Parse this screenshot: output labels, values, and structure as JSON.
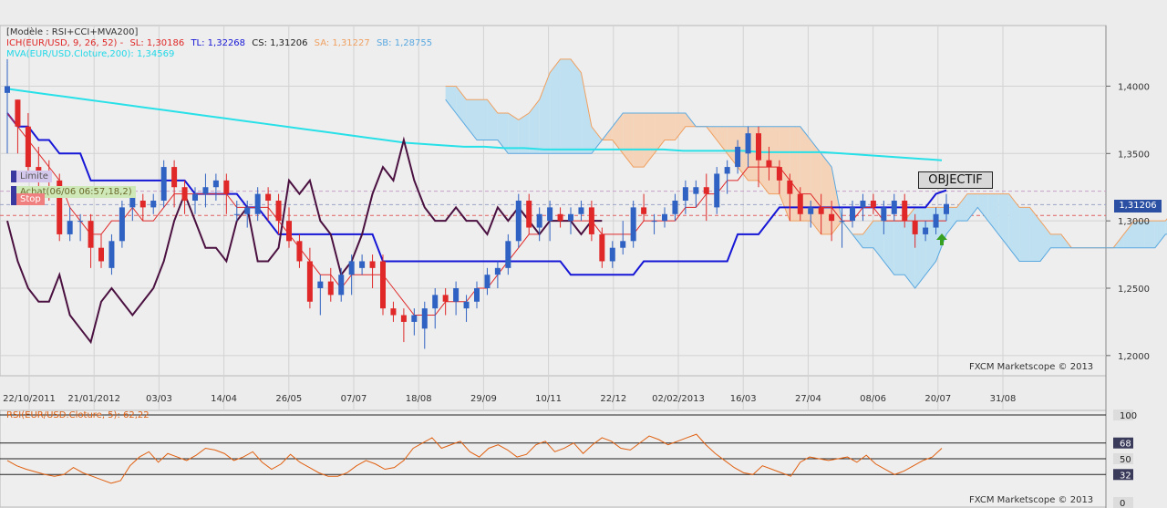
{
  "legend": {
    "model": "[Modèle : RSI+CCI+MVA200]",
    "ich_name": "ICH(EUR/USD, 9, 26, 52) -",
    "sl": "SL: 1,30186",
    "tl": "TL: 1,32268",
    "cs": "CS: 1,31206",
    "sa": "SA: 1,31227",
    "sb": "SB: 1,28755",
    "mva": "MVA(EUR/USD.Cloture,200): 1,34569"
  },
  "order_tags": {
    "limite": "Limite",
    "achat": "Achat(06/06 06:57,18,2)",
    "stop": "Stop"
  },
  "objectif": "OBJECTIF",
  "current_price": "1,31206",
  "watermark": "FXCM Marketscope © 2013",
  "colors": {
    "bull": "#2f62c2",
    "bear": "#e02828",
    "tenkan": "#e02828",
    "kijun": "#1616d6",
    "chikou": "#4a1040",
    "mva": "#28e0e8",
    "senkou_a": "#f0a060",
    "senkou_b": "#5aa8e0",
    "rsi": "#e06010",
    "arrow": "#38a020"
  },
  "chart_data": [
    {
      "type": "candlestick",
      "title": "ICH(EUR/USD, 9, 26, 52)",
      "y_ticks": [
        "1,4000",
        "1,3500",
        "1,3000",
        "1,2500",
        "1,2000"
      ],
      "x_ticks": [
        "22/10/2011",
        "21/01/2012",
        "03/03",
        "14/04",
        "26/05",
        "07/07",
        "18/08",
        "29/09",
        "10/11",
        "22/12",
        "02/02/2013",
        "16/03",
        "27/04",
        "08/06",
        "20/07",
        "31/08"
      ],
      "ylim": [
        1.185,
        1.445
      ],
      "candles": [
        [
          1.395,
          1.42,
          1.4,
          1.35
        ],
        [
          1.39,
          1.39,
          1.37,
          1.35
        ],
        [
          1.37,
          1.38,
          1.34,
          1.33
        ],
        [
          1.34,
          1.355,
          1.335,
          1.325
        ],
        [
          1.335,
          1.345,
          1.33,
          1.315
        ],
        [
          1.33,
          1.335,
          1.29,
          1.285
        ],
        [
          1.29,
          1.31,
          1.3,
          1.285
        ],
        [
          1.3,
          1.305,
          1.3,
          1.285
        ],
        [
          1.3,
          1.305,
          1.28,
          1.265
        ],
        [
          1.28,
          1.29,
          1.27,
          1.265
        ],
        [
          1.265,
          1.29,
          1.285,
          1.26
        ],
        [
          1.285,
          1.315,
          1.31,
          1.28
        ],
        [
          1.31,
          1.325,
          1.32,
          1.3
        ],
        [
          1.315,
          1.32,
          1.31,
          1.3
        ],
        [
          1.31,
          1.32,
          1.315,
          1.305
        ],
        [
          1.315,
          1.345,
          1.34,
          1.31
        ],
        [
          1.34,
          1.345,
          1.325,
          1.31
        ],
        [
          1.325,
          1.33,
          1.315,
          1.305
        ],
        [
          1.315,
          1.325,
          1.32,
          1.305
        ],
        [
          1.32,
          1.335,
          1.325,
          1.31
        ],
        [
          1.325,
          1.335,
          1.33,
          1.315
        ],
        [
          1.33,
          1.335,
          1.32,
          1.305
        ],
        [
          1.305,
          1.315,
          1.305,
          1.3
        ],
        [
          1.305,
          1.315,
          1.31,
          1.295
        ],
        [
          1.305,
          1.325,
          1.32,
          1.3
        ],
        [
          1.32,
          1.325,
          1.315,
          1.3
        ],
        [
          1.315,
          1.32,
          1.3,
          1.29
        ],
        [
          1.3,
          1.31,
          1.285,
          1.28
        ],
        [
          1.285,
          1.29,
          1.27,
          1.265
        ],
        [
          1.27,
          1.28,
          1.24,
          1.235
        ],
        [
          1.25,
          1.26,
          1.255,
          1.23
        ],
        [
          1.255,
          1.265,
          1.245,
          1.24
        ],
        [
          1.245,
          1.265,
          1.26,
          1.24
        ],
        [
          1.26,
          1.275,
          1.27,
          1.245
        ],
        [
          1.265,
          1.275,
          1.27,
          1.26
        ],
        [
          1.27,
          1.275,
          1.265,
          1.25
        ],
        [
          1.27,
          1.275,
          1.235,
          1.23
        ],
        [
          1.235,
          1.24,
          1.23,
          1.225
        ],
        [
          1.23,
          1.235,
          1.225,
          1.21
        ],
        [
          1.225,
          1.235,
          1.23,
          1.215
        ],
        [
          1.22,
          1.24,
          1.235,
          1.205
        ],
        [
          1.235,
          1.25,
          1.245,
          1.22
        ],
        [
          1.245,
          1.25,
          1.24,
          1.23
        ],
        [
          1.24,
          1.255,
          1.25,
          1.23
        ],
        [
          1.235,
          1.245,
          1.24,
          1.225
        ],
        [
          1.24,
          1.255,
          1.25,
          1.235
        ],
        [
          1.25,
          1.265,
          1.26,
          1.245
        ],
        [
          1.26,
          1.27,
          1.265,
          1.25
        ],
        [
          1.265,
          1.29,
          1.285,
          1.26
        ],
        [
          1.285,
          1.32,
          1.315,
          1.28
        ],
        [
          1.315,
          1.32,
          1.295,
          1.29
        ],
        [
          1.295,
          1.31,
          1.305,
          1.285
        ],
        [
          1.3,
          1.315,
          1.31,
          1.285
        ],
        [
          1.305,
          1.31,
          1.3,
          1.295
        ],
        [
          1.3,
          1.31,
          1.305,
          1.29
        ],
        [
          1.305,
          1.315,
          1.31,
          1.3
        ],
        [
          1.31,
          1.315,
          1.29,
          1.285
        ],
        [
          1.29,
          1.295,
          1.27,
          1.265
        ],
        [
          1.27,
          1.285,
          1.28,
          1.265
        ],
        [
          1.28,
          1.3,
          1.285,
          1.275
        ],
        [
          1.285,
          1.315,
          1.31,
          1.28
        ],
        [
          1.31,
          1.32,
          1.305,
          1.3
        ],
        [
          1.3,
          1.305,
          1.3,
          1.29
        ],
        [
          1.3,
          1.31,
          1.305,
          1.295
        ],
        [
          1.305,
          1.32,
          1.315,
          1.3
        ],
        [
          1.315,
          1.33,
          1.325,
          1.305
        ],
        [
          1.32,
          1.33,
          1.325,
          1.31
        ],
        [
          1.325,
          1.335,
          1.32,
          1.3
        ],
        [
          1.31,
          1.34,
          1.335,
          1.305
        ],
        [
          1.335,
          1.345,
          1.34,
          1.32
        ],
        [
          1.34,
          1.36,
          1.355,
          1.335
        ],
        [
          1.35,
          1.37,
          1.365,
          1.34
        ],
        [
          1.365,
          1.37,
          1.345,
          1.325
        ],
        [
          1.345,
          1.355,
          1.34,
          1.33
        ],
        [
          1.34,
          1.345,
          1.33,
          1.32
        ],
        [
          1.33,
          1.335,
          1.32,
          1.3
        ],
        [
          1.32,
          1.325,
          1.305,
          1.3
        ],
        [
          1.305,
          1.315,
          1.31,
          1.295
        ],
        [
          1.31,
          1.32,
          1.305,
          1.29
        ],
        [
          1.305,
          1.315,
          1.3,
          1.285
        ],
        [
          1.3,
          1.31,
          1.3,
          1.28
        ],
        [
          1.3,
          1.315,
          1.31,
          1.295
        ],
        [
          1.31,
          1.32,
          1.315,
          1.3
        ],
        [
          1.315,
          1.32,
          1.31,
          1.305
        ],
        [
          1.3,
          1.315,
          1.31,
          1.29
        ],
        [
          1.305,
          1.32,
          1.315,
          1.3
        ],
        [
          1.315,
          1.32,
          1.3,
          1.295
        ],
        [
          1.3,
          1.305,
          1.29,
          1.28
        ],
        [
          1.29,
          1.3,
          1.295,
          1.285
        ],
        [
          1.295,
          1.31,
          1.305,
          1.29
        ],
        [
          1.305,
          1.32,
          1.3125,
          1.3
        ]
      ],
      "tenkan_sen": [
        1.38,
        1.37,
        1.36,
        1.35,
        1.34,
        1.33,
        1.31,
        1.3,
        1.29,
        1.29,
        1.3,
        1.3,
        1.31,
        1.3,
        1.3,
        1.31,
        1.32,
        1.32,
        1.32,
        1.32,
        1.32,
        1.32,
        1.31,
        1.31,
        1.31,
        1.31,
        1.3,
        1.29,
        1.28,
        1.27,
        1.26,
        1.26,
        1.25,
        1.26,
        1.26,
        1.26,
        1.26,
        1.25,
        1.24,
        1.23,
        1.23,
        1.23,
        1.24,
        1.24,
        1.24,
        1.25,
        1.25,
        1.26,
        1.27,
        1.28,
        1.29,
        1.29,
        1.3,
        1.3,
        1.3,
        1.3,
        1.3,
        1.29,
        1.29,
        1.29,
        1.29,
        1.3,
        1.3,
        1.3,
        1.3,
        1.31,
        1.31,
        1.32,
        1.32,
        1.33,
        1.33,
        1.34,
        1.34,
        1.34,
        1.34,
        1.33,
        1.32,
        1.32,
        1.31,
        1.31,
        1.3,
        1.3,
        1.31,
        1.31,
        1.3,
        1.3,
        1.3,
        1.3,
        1.3,
        1.3,
        1.3
      ],
      "kijun_sen": [
        1.38,
        1.37,
        1.37,
        1.36,
        1.36,
        1.35,
        1.35,
        1.35,
        1.33,
        1.33,
        1.33,
        1.33,
        1.33,
        1.33,
        1.33,
        1.33,
        1.33,
        1.33,
        1.32,
        1.32,
        1.32,
        1.32,
        1.32,
        1.31,
        1.31,
        1.3,
        1.29,
        1.29,
        1.29,
        1.29,
        1.29,
        1.29,
        1.29,
        1.29,
        1.29,
        1.29,
        1.27,
        1.27,
        1.27,
        1.27,
        1.27,
        1.27,
        1.27,
        1.27,
        1.27,
        1.27,
        1.27,
        1.27,
        1.27,
        1.27,
        1.27,
        1.27,
        1.27,
        1.27,
        1.26,
        1.26,
        1.26,
        1.26,
        1.26,
        1.26,
        1.26,
        1.27,
        1.27,
        1.27,
        1.27,
        1.27,
        1.27,
        1.27,
        1.27,
        1.27,
        1.29,
        1.29,
        1.29,
        1.3,
        1.31,
        1.31,
        1.31,
        1.31,
        1.31,
        1.31,
        1.31,
        1.31,
        1.31,
        1.31,
        1.31,
        1.31,
        1.31,
        1.31,
        1.31,
        1.32,
        1.3227
      ],
      "chikou_span": [
        1.3,
        1.27,
        1.25,
        1.24,
        1.24,
        1.26,
        1.23,
        1.22,
        1.21,
        1.24,
        1.25,
        1.24,
        1.23,
        1.24,
        1.25,
        1.27,
        1.3,
        1.32,
        1.3,
        1.28,
        1.28,
        1.27,
        1.3,
        1.31,
        1.27,
        1.27,
        1.28,
        1.33,
        1.32,
        1.33,
        1.3,
        1.29,
        1.26,
        1.27,
        1.29,
        1.32,
        1.34,
        1.33,
        1.36,
        1.33,
        1.31,
        1.3,
        1.3,
        1.31,
        1.3,
        1.3,
        1.29,
        1.31,
        1.3,
        1.31,
        1.3,
        1.29,
        1.3,
        1.3,
        1.3,
        1.29,
        1.3,
        1.3
      ],
      "senkou_span_a": [
        1.4,
        1.4,
        1.39,
        1.39,
        1.39,
        1.38,
        1.38,
        1.375,
        1.38,
        1.39,
        1.41,
        1.42,
        1.42,
        1.41,
        1.37,
        1.36,
        1.36,
        1.35,
        1.34,
        1.34,
        1.35,
        1.36,
        1.36,
        1.37,
        1.37,
        1.37,
        1.36,
        1.35,
        1.34,
        1.33,
        1.33,
        1.32,
        1.32,
        1.3,
        1.3,
        1.3,
        1.29,
        1.29,
        1.3,
        1.29,
        1.29,
        1.3,
        1.3,
        1.3,
        1.3,
        1.31,
        1.31,
        1.31,
        1.31,
        1.31,
        1.32,
        1.32,
        1.32,
        1.32,
        1.32,
        1.31,
        1.31,
        1.3,
        1.29,
        1.29,
        1.28,
        1.28,
        1.28,
        1.28,
        1.28,
        1.29,
        1.3,
        1.3,
        1.3,
        1.3,
        1.31,
        1.31,
        1.32,
        1.32,
        1.325
      ],
      "senkou_span_b": [
        1.39,
        1.38,
        1.37,
        1.36,
        1.36,
        1.36,
        1.35,
        1.35,
        1.35,
        1.35,
        1.35,
        1.35,
        1.35,
        1.35,
        1.35,
        1.36,
        1.37,
        1.38,
        1.38,
        1.38,
        1.38,
        1.38,
        1.38,
        1.38,
        1.37,
        1.37,
        1.37,
        1.37,
        1.37,
        1.37,
        1.37,
        1.37,
        1.37,
        1.37,
        1.37,
        1.36,
        1.35,
        1.34,
        1.3,
        1.29,
        1.28,
        1.28,
        1.27,
        1.26,
        1.26,
        1.25,
        1.26,
        1.27,
        1.29,
        1.3,
        1.3,
        1.31,
        1.3,
        1.29,
        1.28,
        1.27,
        1.27,
        1.27,
        1.28,
        1.28,
        1.28,
        1.28,
        1.28,
        1.28,
        1.28,
        1.28,
        1.28,
        1.28,
        1.28,
        1.29,
        1.29,
        1.29,
        1.29,
        1.29,
        1.29
      ],
      "mva200": [
        1.398,
        1.396,
        1.394,
        1.392,
        1.39,
        1.388,
        1.386,
        1.384,
        1.382,
        1.38,
        1.378,
        1.376,
        1.374,
        1.372,
        1.37,
        1.368,
        1.366,
        1.364,
        1.362,
        1.36,
        1.358,
        1.357,
        1.356,
        1.355,
        1.355,
        1.354,
        1.354,
        1.353,
        1.353,
        1.353,
        1.353,
        1.353,
        1.353,
        1.353,
        1.352,
        1.352,
        1.352,
        1.352,
        1.351,
        1.351,
        1.351,
        1.351,
        1.35,
        1.349,
        1.348,
        1.347,
        1.346,
        1.345
      ],
      "reference_lines": {
        "current": 1.31206,
        "limite": 1.322,
        "stop": 1.304
      }
    },
    {
      "type": "line",
      "title": "RSI(EUR/USD.Cloture, 5): 62,22",
      "y_ticks": [
        "100",
        "68",
        "50",
        "32",
        "0"
      ],
      "ylim": [
        0,
        100
      ],
      "levels": [
        68,
        50,
        32
      ],
      "values": [
        48,
        42,
        38,
        35,
        32,
        30,
        32,
        40,
        34,
        30,
        26,
        22,
        25,
        42,
        52,
        58,
        46,
        56,
        52,
        48,
        54,
        62,
        60,
        56,
        48,
        52,
        58,
        46,
        38,
        44,
        55,
        46,
        40,
        34,
        30,
        30,
        34,
        42,
        48,
        44,
        38,
        40,
        48,
        62,
        68,
        74,
        62,
        66,
        70,
        58,
        52,
        62,
        66,
        60,
        52,
        55,
        66,
        70,
        58,
        62,
        68,
        56,
        66,
        74,
        70,
        62,
        60,
        68,
        76,
        72,
        66,
        70,
        74,
        78,
        66,
        56,
        48,
        40,
        34,
        32,
        42,
        38,
        34,
        30,
        46,
        52,
        50,
        48,
        50,
        52,
        46,
        54,
        44,
        38,
        32,
        36,
        42,
        48,
        52,
        62
      ]
    }
  ]
}
